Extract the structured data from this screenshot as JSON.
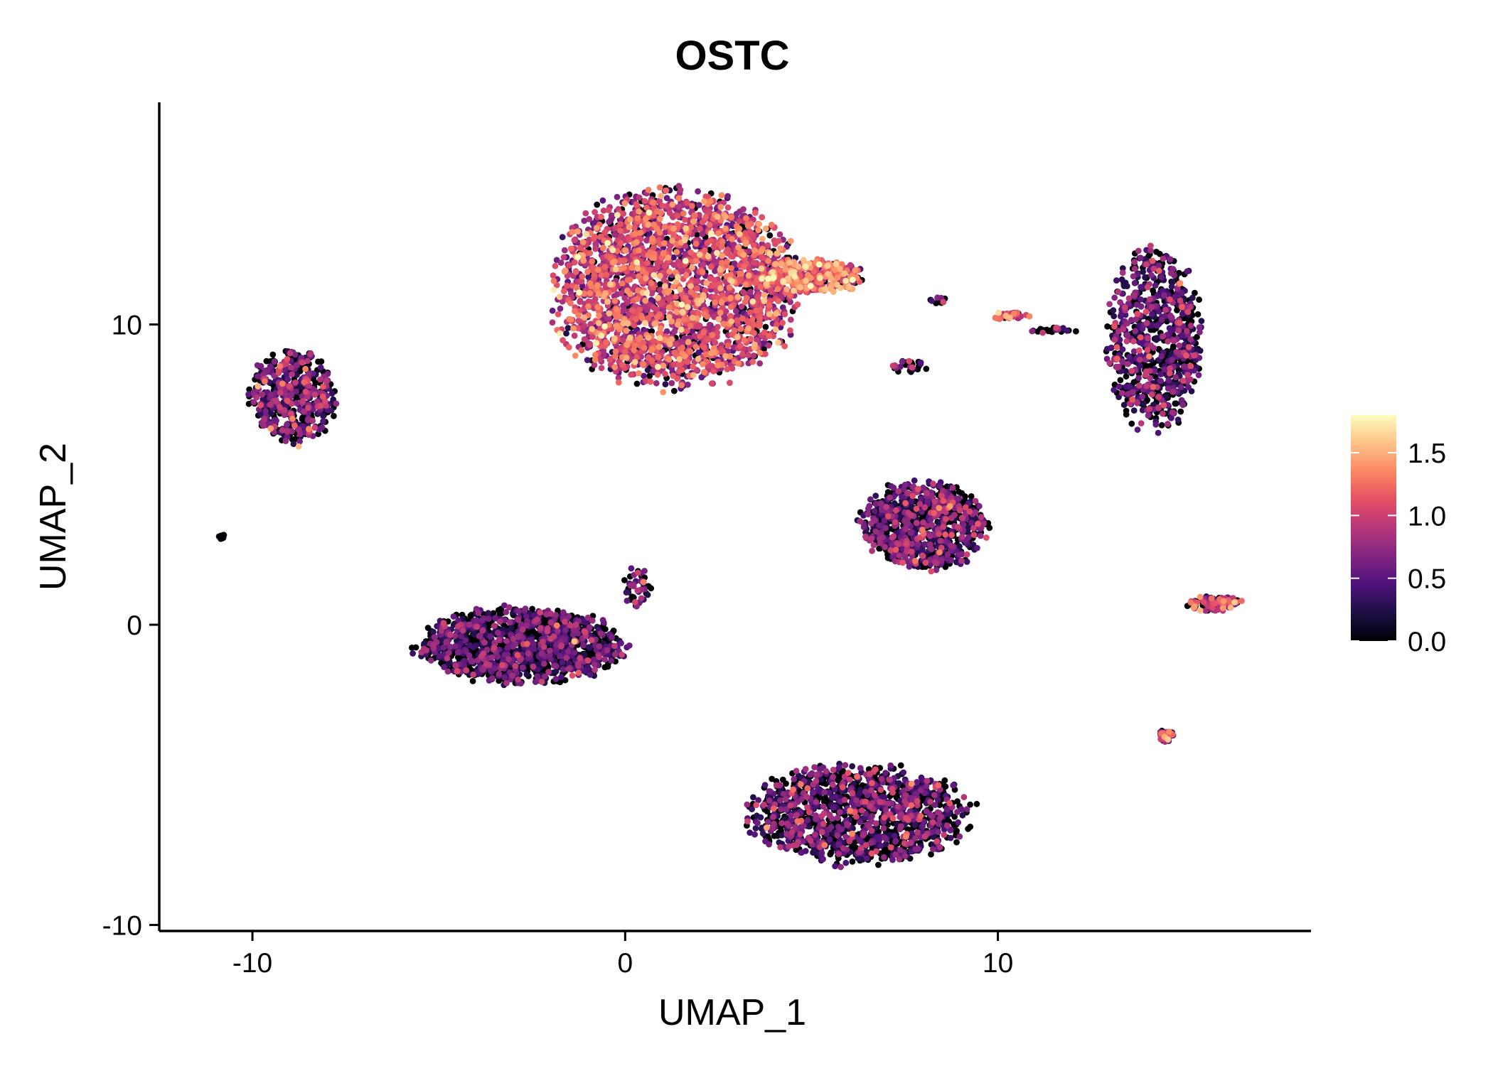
{
  "chart_data": {
    "type": "scatter",
    "title": "OSTC",
    "xlabel": "UMAP_1",
    "ylabel": "UMAP_2",
    "xlim": [
      -12.5,
      18.4
    ],
    "ylim": [
      -10.2,
      17.4
    ],
    "xticks": [
      -10,
      0,
      10
    ],
    "yticks": [
      -10,
      0,
      10
    ],
    "xtick_labels": [
      "-10",
      "0",
      "10"
    ],
    "ytick_labels": [
      "-10",
      "0",
      "10"
    ],
    "color_scale": {
      "name": "magma",
      "min": 0.0,
      "max": 1.8,
      "ticks": [
        0.0,
        0.5,
        1.0,
        1.5
      ],
      "tick_labels": [
        "0.0",
        "0.5",
        "1.0",
        "1.5"
      ],
      "stops": [
        "#000004",
        "#1c1044",
        "#4f127b",
        "#812581",
        "#b5367a",
        "#e55064",
        "#fb8761",
        "#fec287",
        "#fcfdbf"
      ]
    },
    "legend_position": "right",
    "grid": false,
    "clusters": [
      {
        "name": "top-center-main",
        "center": [
          1.3,
          11.2
        ],
        "spread": [
          3.1,
          3.1
        ],
        "n": 2600,
        "mean_expr": 0.95,
        "zero_frac": 0.12
      },
      {
        "name": "top-center-arm",
        "center": [
          5.0,
          11.6
        ],
        "spread": [
          1.3,
          0.55
        ],
        "n": 320,
        "mean_expr": 1.15,
        "zero_frac": 0.1
      },
      {
        "name": "top-left",
        "center": [
          -8.9,
          7.6
        ],
        "spread": [
          1.1,
          1.5
        ],
        "n": 500,
        "mean_expr": 0.6,
        "zero_frac": 0.35
      },
      {
        "name": "top-right",
        "center": [
          14.2,
          9.5
        ],
        "spread": [
          1.2,
          2.9
        ],
        "n": 800,
        "mean_expr": 0.5,
        "zero_frac": 0.42
      },
      {
        "name": "middle-right",
        "center": [
          8.0,
          3.3
        ],
        "spread": [
          1.6,
          1.4
        ],
        "n": 900,
        "mean_expr": 0.55,
        "zero_frac": 0.45
      },
      {
        "name": "middle-left",
        "center": [
          -2.8,
          -0.7
        ],
        "spread": [
          2.6,
          1.2
        ],
        "n": 1400,
        "mean_expr": 0.45,
        "zero_frac": 0.5
      },
      {
        "name": "middle-left-arm",
        "center": [
          0.3,
          1.2
        ],
        "spread": [
          0.35,
          0.7
        ],
        "n": 50,
        "mean_expr": 0.7,
        "zero_frac": 0.3
      },
      {
        "name": "bottom-center",
        "center": [
          6.3,
          -6.3
        ],
        "spread": [
          2.8,
          1.6
        ],
        "n": 1300,
        "mean_expr": 0.55,
        "zero_frac": 0.45
      },
      {
        "name": "upper-small-1",
        "center": [
          8.4,
          10.8
        ],
        "spread": [
          0.2,
          0.1
        ],
        "n": 10,
        "mean_expr": 0.5,
        "zero_frac": 0.4
      },
      {
        "name": "upper-small-2",
        "center": [
          10.3,
          10.3
        ],
        "spread": [
          0.5,
          0.12
        ],
        "n": 35,
        "mean_expr": 1.0,
        "zero_frac": 0.2
      },
      {
        "name": "upper-small-3",
        "center": [
          11.5,
          9.8
        ],
        "spread": [
          0.7,
          0.1
        ],
        "n": 25,
        "mean_expr": 0.6,
        "zero_frac": 0.4
      },
      {
        "name": "upper-small-4",
        "center": [
          7.6,
          8.6
        ],
        "spread": [
          0.6,
          0.2
        ],
        "n": 25,
        "mean_expr": 0.6,
        "zero_frac": 0.4
      },
      {
        "name": "right-small",
        "center": [
          15.8,
          0.7
        ],
        "spread": [
          0.7,
          0.25
        ],
        "n": 90,
        "mean_expr": 0.9,
        "zero_frac": 0.25
      },
      {
        "name": "bottom-right-small",
        "center": [
          14.5,
          -3.7
        ],
        "spread": [
          0.2,
          0.2
        ],
        "n": 50,
        "mean_expr": 1.0,
        "zero_frac": 0.3
      },
      {
        "name": "far-left-dot",
        "center": [
          -10.8,
          2.9
        ],
        "spread": [
          0.1,
          0.1
        ],
        "n": 8,
        "mean_expr": 0.0,
        "zero_frac": 1.0
      }
    ]
  }
}
